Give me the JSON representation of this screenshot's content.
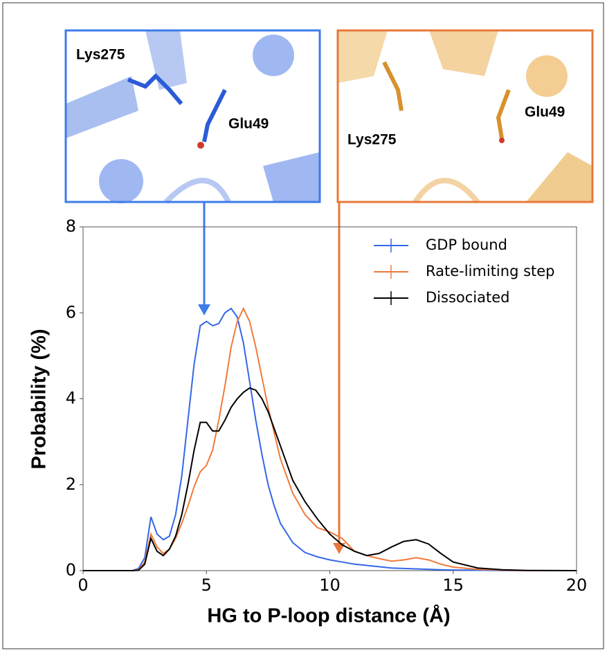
{
  "chart_data": {
    "type": "line",
    "xlabel": "HG to P-loop distance (Å)",
    "ylabel": "Probability (%)",
    "x": [
      0,
      2,
      2.25,
      2.5,
      2.75,
      3,
      3.25,
      3.5,
      3.75,
      4,
      4.25,
      4.5,
      4.75,
      5,
      5.25,
      5.5,
      5.75,
      6,
      6.25,
      6.5,
      6.75,
      7,
      7.25,
      7.5,
      7.75,
      8,
      8.5,
      9,
      9.5,
      10,
      10.5,
      11,
      11.5,
      12,
      12.5,
      13,
      13.5,
      14,
      14.5,
      15,
      16,
      17,
      18,
      20
    ],
    "series": [
      {
        "name": "GDP bound",
        "color": "#3466e8",
        "values": [
          0,
          0,
          0.05,
          0.3,
          1.25,
          0.85,
          0.72,
          0.8,
          1.3,
          2.2,
          3.5,
          4.8,
          5.7,
          5.8,
          5.7,
          5.75,
          6.0,
          6.1,
          5.9,
          5.3,
          4.4,
          3.5,
          2.7,
          2.0,
          1.5,
          1.1,
          0.65,
          0.42,
          0.32,
          0.25,
          0.2,
          0.15,
          0.12,
          0.09,
          0.06,
          0.05,
          0.04,
          0.03,
          0.02,
          0.015,
          0.01,
          0,
          0,
          0
        ]
      },
      {
        "name": "Rate-limiting step",
        "color": "#f07a3a",
        "values": [
          0,
          0,
          0.02,
          0.2,
          0.85,
          0.55,
          0.4,
          0.5,
          0.75,
          1.1,
          1.5,
          1.95,
          2.3,
          2.45,
          2.8,
          3.5,
          4.3,
          5.2,
          5.8,
          6.1,
          5.8,
          5.2,
          4.5,
          3.8,
          3.2,
          2.6,
          1.8,
          1.3,
          1.0,
          0.9,
          0.75,
          0.45,
          0.35,
          0.28,
          0.22,
          0.25,
          0.3,
          0.25,
          0.15,
          0.08,
          0.03,
          0.01,
          0,
          0
        ]
      },
      {
        "name": "Dissociated",
        "color": "#000000",
        "values": [
          0,
          0,
          0.01,
          0.15,
          0.75,
          0.45,
          0.35,
          0.5,
          0.8,
          1.3,
          2.0,
          2.8,
          3.45,
          3.45,
          3.25,
          3.25,
          3.5,
          3.8,
          4.0,
          4.15,
          4.25,
          4.2,
          4.0,
          3.7,
          3.3,
          2.9,
          2.1,
          1.6,
          1.2,
          0.85,
          0.6,
          0.45,
          0.35,
          0.4,
          0.55,
          0.68,
          0.72,
          0.62,
          0.4,
          0.2,
          0.06,
          0.02,
          0.005,
          0
        ]
      }
    ],
    "xlim": [
      0,
      20
    ],
    "xticks": [
      0,
      5,
      10,
      15,
      20
    ],
    "ylim": [
      0,
      8
    ],
    "yticks": [
      0,
      2,
      4,
      6,
      8
    ],
    "legend": "upper right"
  },
  "insets": [
    {
      "labels": [
        "Lys275",
        "Glu49"
      ],
      "color": "#3d7be8"
    },
    {
      "labels": [
        "Lys275",
        "Glu49"
      ],
      "color": "#e8783a"
    }
  ]
}
